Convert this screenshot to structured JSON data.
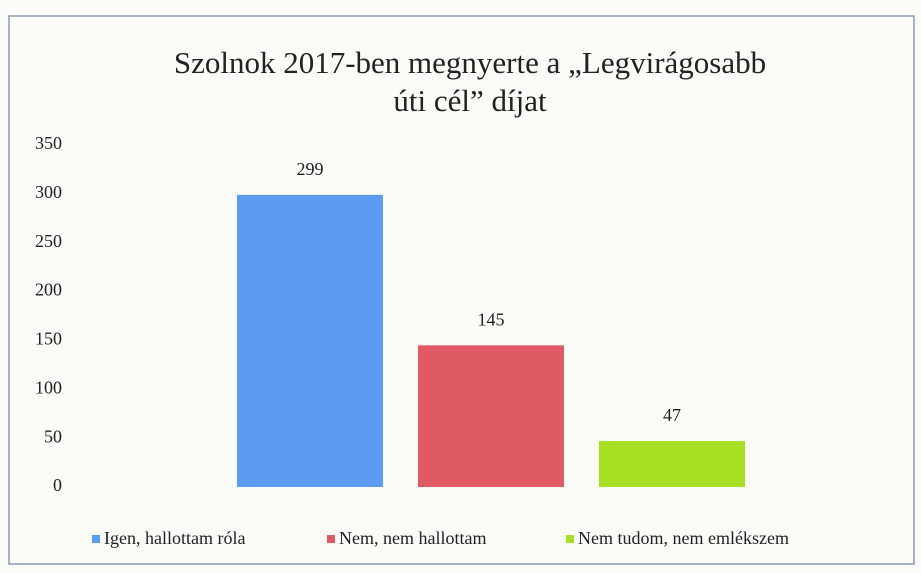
{
  "chart_data": {
    "type": "bar",
    "title": [
      "Szolnok 2017-ben megnyerte a „Legvirágosabb",
      "úti cél” díjat"
    ],
    "categories": [
      null
    ],
    "series": [
      {
        "name": "Igen, hallottam róla",
        "color": "#5b9cf2",
        "values": [
          299
        ]
      },
      {
        "name": "Nem, nem hallottam",
        "color": "#e05a66",
        "values": [
          145
        ]
      },
      {
        "name": "Nem tudom, nem emlékszem",
        "color": "#a6e022",
        "values": [
          47
        ]
      }
    ],
    "ylim": [
      0,
      350
    ],
    "yticks": [
      0,
      50,
      100,
      150,
      200,
      250,
      300,
      350
    ],
    "grid": false,
    "legend": "bottom"
  }
}
